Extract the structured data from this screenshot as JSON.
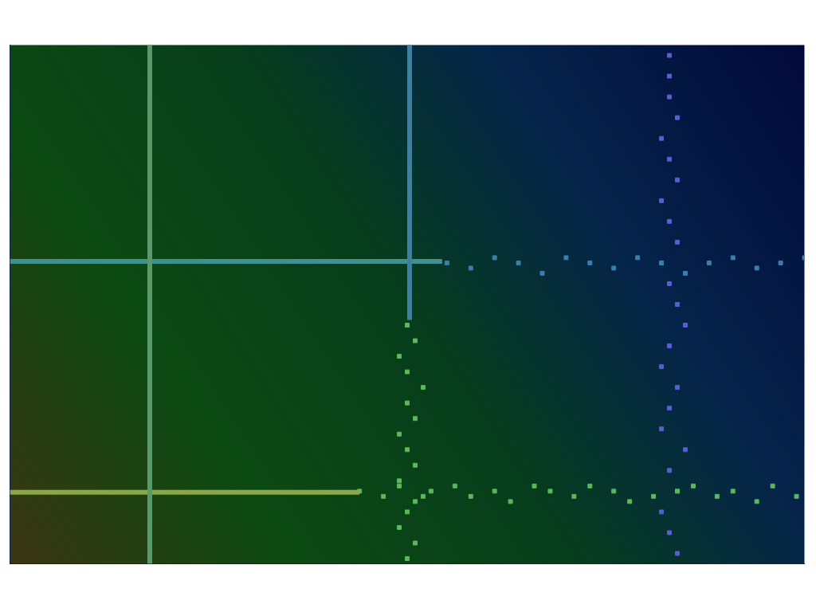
{
  "chart_data": {
    "type": "scatter",
    "xlim": [
      0,
      100
    ],
    "ylim": [
      0,
      100
    ],
    "grid": false,
    "tick_labels": false,
    "series": [
      {
        "color": "#5a9a6a",
        "marker": "none",
        "line_style": "solid",
        "x": [
          17.6,
          17.6
        ],
        "values": [
          0,
          100
        ]
      },
      {
        "color": "#3f7fa0",
        "marker": "none",
        "line_style": "solid",
        "x": [
          50.3,
          50.3
        ],
        "values": [
          47,
          100
        ]
      },
      {
        "color": "#3f9090",
        "marker": "none",
        "line_style": "solid",
        "x": [
          0,
          54.4
        ],
        "values": [
          58.3,
          58.3
        ]
      },
      {
        "color": "#8aa84a",
        "marker": "none",
        "line_style": "solid",
        "x": [
          0,
          44
        ],
        "values": [
          13.8,
          13.8
        ]
      },
      {
        "color": "#5cb85c",
        "marker": "square",
        "line_style": "none",
        "x": [
          44,
          47,
          49,
          51,
          53,
          56,
          58,
          61,
          63,
          66,
          68,
          71,
          73,
          76,
          78,
          81,
          84,
          86,
          89,
          91,
          94,
          96,
          99
        ],
        "values": [
          14,
          13,
          15,
          12,
          14,
          15,
          13,
          14,
          12,
          15,
          14,
          13,
          15,
          14,
          12,
          13,
          14,
          15,
          13,
          14,
          12,
          15,
          13
        ]
      },
      {
        "color": "#5cb85c",
        "marker": "square",
        "line_style": "none",
        "x": [
          50,
          51,
          49,
          50,
          52,
          49,
          51,
          50,
          49,
          51,
          50,
          52,
          50,
          49,
          51,
          50
        ],
        "values": [
          1,
          4,
          7,
          10,
          13,
          16,
          19,
          22,
          25,
          28,
          31,
          34,
          37,
          40,
          43,
          46
        ]
      },
      {
        "color": "#3a7fb0",
        "marker": "square",
        "line_style": "none",
        "x": [
          55,
          58,
          61,
          64,
          67,
          70,
          73,
          76,
          79,
          82,
          85,
          88,
          91,
          94,
          97,
          100
        ],
        "values": [
          58,
          57,
          59,
          58,
          56,
          59,
          58,
          57,
          59,
          58,
          56,
          58,
          59,
          57,
          58,
          59
        ]
      },
      {
        "color": "#5a5fd0",
        "marker": "square",
        "line_style": "none",
        "x": [
          84,
          83,
          82,
          84,
          83,
          85,
          82,
          83,
          84,
          82,
          83,
          85,
          84,
          83,
          82,
          84,
          83,
          82,
          84,
          83,
          82,
          84,
          83,
          83,
          83
        ],
        "values": [
          2,
          6,
          10,
          14,
          18,
          22,
          26,
          30,
          34,
          38,
          42,
          46,
          50,
          54,
          58,
          62,
          66,
          70,
          74,
          78,
          82,
          86,
          90,
          94,
          98
        ]
      }
    ]
  }
}
